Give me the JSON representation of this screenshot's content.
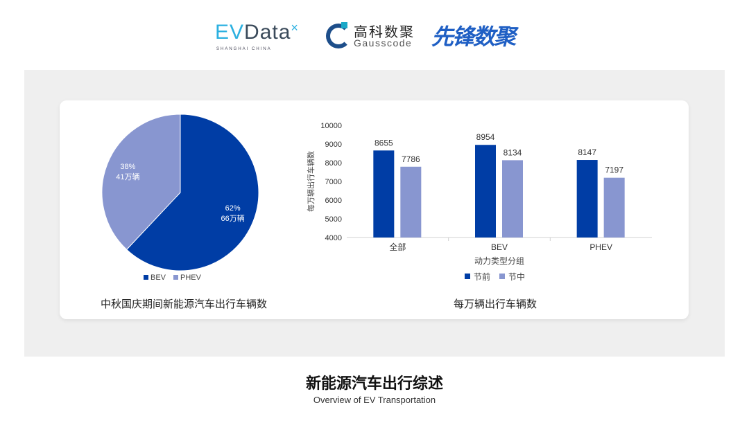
{
  "logos": {
    "evdata": "EVData",
    "evdata_sub": "SHANGHAI CHINA",
    "gausscode_cn": "高科数聚",
    "gausscode_en": "Gausscode",
    "xianfeng": "先锋数聚"
  },
  "colors": {
    "bev": "#003da5",
    "phev": "#8896d0",
    "panel": "#efefef"
  },
  "chart_data": [
    {
      "type": "pie",
      "title": "中秋国庆期间新能源汽车出行车辆数",
      "slices": [
        {
          "name": "BEV",
          "percent": 62,
          "label": "66万辆"
        },
        {
          "name": "PHEV",
          "percent": 38,
          "label": "41万辆"
        }
      ],
      "legend": "bottom"
    },
    {
      "type": "bar",
      "title": "每万辆出行车辆数",
      "xlabel": "动力类型分组",
      "ylabel": "每万辆出行车辆数",
      "categories": [
        "全部",
        "BEV",
        "PHEV"
      ],
      "series": [
        {
          "name": "节前",
          "values": [
            8655,
            8954,
            8147
          ]
        },
        {
          "name": "节中",
          "values": [
            7786,
            8134,
            7197
          ]
        }
      ],
      "ylim": [
        4000,
        10000
      ],
      "yticks": [
        4000,
        5000,
        6000,
        7000,
        8000,
        9000,
        10000
      ],
      "grid": false,
      "legend": "bottom"
    }
  ],
  "footer": {
    "title": "新能源汽车出行综述",
    "subtitle": "Overview of EV Transportation"
  }
}
